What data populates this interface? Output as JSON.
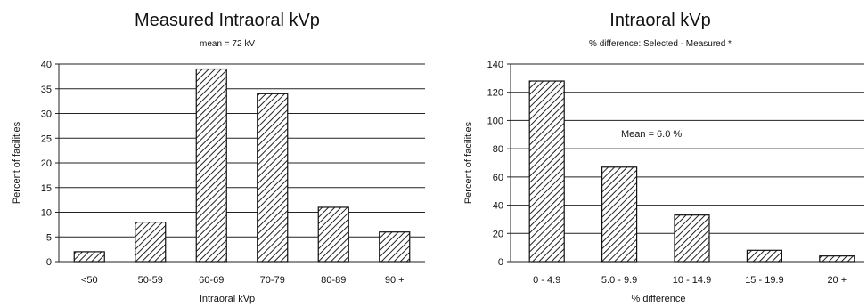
{
  "chart_data": [
    {
      "type": "bar",
      "title": "Measured Intraoral kVp",
      "subtitle": "mean = 72 kV",
      "xlabel": "Intraoral kVp",
      "ylabel": "Percent of facilities",
      "categories": [
        "<50",
        "50-59",
        "60-69",
        "70-79",
        "80-89",
        "90 +"
      ],
      "values": [
        2,
        8,
        39,
        34,
        11,
        6
      ],
      "ylim": [
        0,
        40
      ],
      "yticks": [
        0,
        5,
        10,
        15,
        20,
        25,
        30,
        35,
        40
      ],
      "grid": true
    },
    {
      "type": "bar",
      "title": "Intraoral kVp",
      "subtitle": "% difference:  Selected - Measured *",
      "annotation": "Mean = 6.0 %",
      "xlabel": "% difference",
      "ylabel": "Percent of facilities",
      "categories": [
        "0 - 4.9",
        "5.0 - 9.9",
        "10 - 14.9",
        "15 - 19.9",
        "20 +"
      ],
      "values": [
        128,
        67,
        33,
        8,
        4
      ],
      "ylim": [
        0,
        140
      ],
      "yticks": [
        0,
        20,
        40,
        60,
        80,
        100,
        120,
        140
      ],
      "grid": true
    }
  ]
}
